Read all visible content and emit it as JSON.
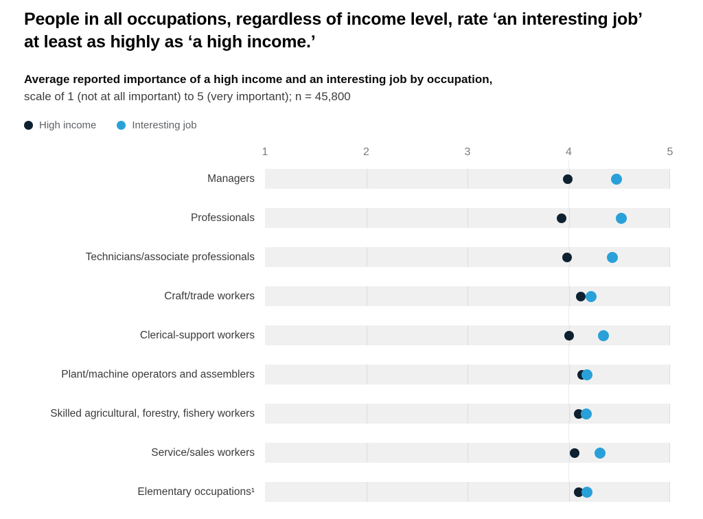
{
  "header": {
    "title_line1": "People in all occupations, regardless of income level, rate ‘an interesting job’",
    "title_line2": "at least as highly as ‘a high income.’",
    "subtitle_bold": "Average reported importance of a high income and an interesting job by occupation,",
    "subtitle_regular": "scale of 1 (not at all important) to 5 (very important); n = 45,800"
  },
  "legend": {
    "position": "top-left",
    "items": [
      {
        "label": "High income",
        "color": "#0e2130"
      },
      {
        "label": "Interesting job",
        "color": "#2aa0d8"
      }
    ]
  },
  "chart_data": {
    "type": "scatter",
    "subtype": "horizontal-dot-plot",
    "title": "People in all occupations, regardless of income level, rate ‘an interesting job’ at least as highly as ‘a high income.’",
    "subtitle": "Average reported importance of a high income and an interesting job by occupation, scale of 1 (not at all important) to 5 (very important); n = 45,800",
    "xlabel": "",
    "ylabel": "",
    "scale_min": 1,
    "scale_max": 5,
    "x_ticks": [
      1,
      2,
      3,
      4,
      5
    ],
    "grid": "vertical-lines-in-bands",
    "band_color": "#f0f0f0",
    "gridline_color": "#dcdcdc",
    "categories": [
      "Managers",
      "Professionals",
      "Technicians/associate professionals",
      "Craft/trade workers",
      "Clerical-support workers",
      "Plant/machine operators and assemblers",
      "Skilled agricultural, forestry, fishery workers",
      "Service/sales workers",
      "Elementary occupations¹"
    ],
    "series": [
      {
        "name": "High income",
        "color": "#0e2130",
        "values": [
          3.99,
          3.93,
          3.98,
          4.12,
          4.0,
          4.13,
          4.1,
          4.06,
          4.1
        ]
      },
      {
        "name": "Interesting job",
        "color": "#2aa0d8",
        "values": [
          4.47,
          4.52,
          4.43,
          4.22,
          4.34,
          4.18,
          4.17,
          4.31,
          4.18
        ]
      }
    ]
  }
}
